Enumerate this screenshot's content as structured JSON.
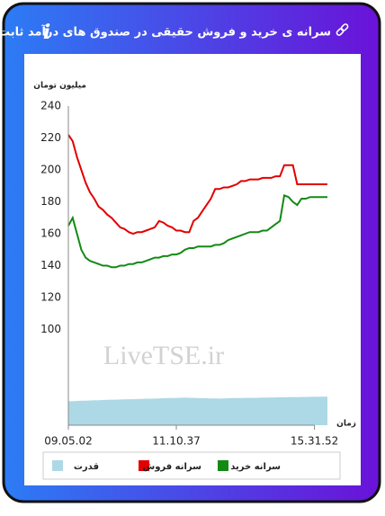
{
  "header": {
    "title": "سرانه ی خرید و فروش حقیقی در صندوق های درآمد ثابت"
  },
  "chart_data": {
    "type": "line",
    "y_label": "میلیون تومان",
    "x_label": "زمان",
    "watermark": "LiveTSE.ir",
    "xlim": [
      0,
      60
    ],
    "xticks": [
      {
        "value": 0,
        "label": "09.05.02"
      },
      {
        "value": 25,
        "label": "11.10.37"
      },
      {
        "value": 57,
        "label": "15.31.52"
      }
    ],
    "ylim": [
      40,
      240
    ],
    "yticks": [
      100,
      120,
      140,
      160,
      180,
      200,
      220,
      240
    ],
    "series": [
      {
        "name": "سرانه خرید",
        "type": "line",
        "color": "#138a13",
        "values": [
          165,
          170,
          160,
          150,
          145,
          143,
          142,
          141,
          140,
          140,
          139,
          139,
          140,
          140,
          141,
          141,
          142,
          142,
          143,
          144,
          145,
          145,
          146,
          146,
          147,
          147,
          148,
          150,
          151,
          151,
          152,
          152,
          152,
          152,
          153,
          153,
          154,
          156,
          157,
          158,
          159,
          160,
          161,
          161,
          161,
          162,
          162,
          164,
          166,
          168,
          184,
          183,
          180,
          178,
          182,
          182,
          183,
          183,
          183,
          183,
          183
        ]
      },
      {
        "name": "سرانه فروش",
        "type": "line",
        "color": "#e20000",
        "values": [
          222,
          218,
          208,
          200,
          192,
          186,
          182,
          177,
          175,
          172,
          170,
          167,
          164,
          163,
          161,
          160,
          161,
          161,
          162,
          163,
          164,
          168,
          167,
          165,
          164,
          162,
          162,
          161,
          161,
          168,
          170,
          174,
          178,
          182,
          188,
          188,
          189,
          189,
          190,
          191,
          193,
          193,
          194,
          194,
          194,
          195,
          195,
          195,
          196,
          196,
          203,
          203,
          203,
          191,
          191,
          191,
          191,
          191,
          191,
          191,
          191
        ]
      },
      {
        "name": "قدرت",
        "type": "area",
        "color": "#add8e6",
        "values": [
          55,
          55,
          55.2,
          55.3,
          55.4,
          55.5,
          55.6,
          55.6,
          55.8,
          55.9,
          56,
          56,
          56.1,
          56.2,
          56.3,
          56.3,
          56.4,
          56.5,
          56.6,
          56.6,
          56.7,
          56.8,
          56.9,
          57,
          57,
          57.1,
          57.2,
          57.3,
          57.2,
          57.1,
          57,
          56.9,
          56.9,
          56.8,
          56.8,
          56.7,
          56.8,
          56.9,
          57,
          57,
          57,
          57.1,
          57.1,
          57.2,
          57.2,
          57.3,
          57.3,
          57.4,
          57.4,
          57.5,
          57.5,
          57.6,
          57.6,
          57.6,
          57.7,
          57.7,
          57.8,
          57.8,
          57.8,
          57.9,
          57.9
        ]
      }
    ]
  }
}
